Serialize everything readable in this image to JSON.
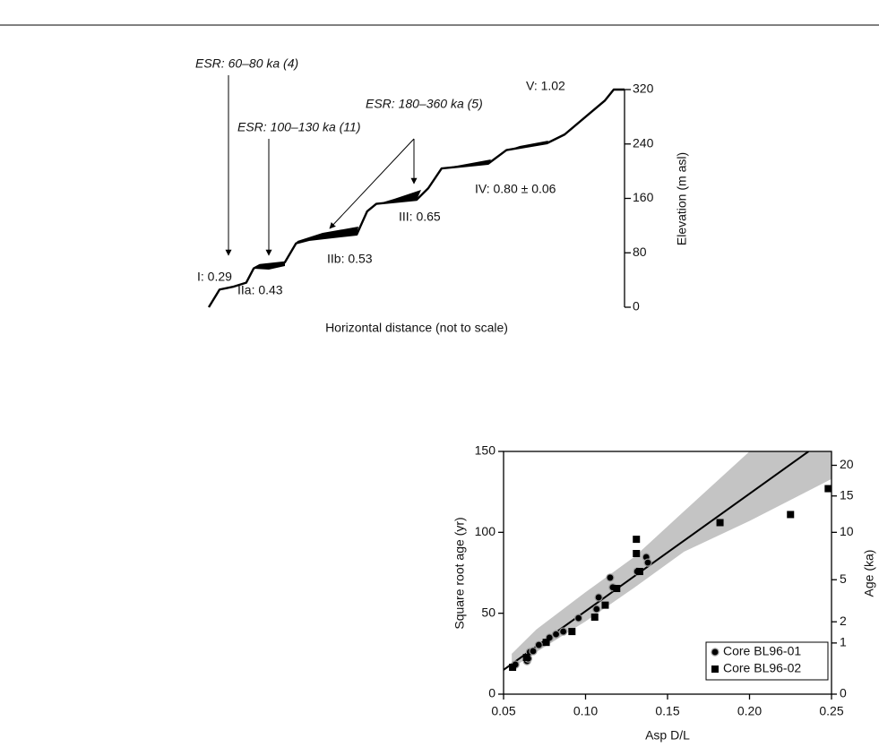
{
  "chart_data": [
    {
      "type": "line",
      "xlabel": "Horizontal distance (not to scale)",
      "ylabel": "Elevation (m asl)",
      "xlim": [
        0,
        100
      ],
      "ylim": [
        0,
        320
      ],
      "yticks": [
        0,
        80,
        160,
        240,
        320
      ],
      "color": "#000000",
      "x": [
        0,
        2.6,
        5.8,
        9,
        10.8,
        12.3,
        18.3,
        21,
        24.1,
        35.6,
        38.1,
        40.3,
        50,
        52.8,
        56,
        67.2,
        71.6,
        81.3,
        85.6,
        92,
        95.3,
        97.4,
        100
      ],
      "values": [
        0,
        26,
        30,
        36,
        57,
        62,
        66,
        94,
        99,
        107,
        141,
        152,
        158,
        175,
        204,
        211,
        231,
        241,
        254,
        287,
        304,
        320,
        320
      ],
      "annotations": [
        "ESR: 60–80 ka (4)",
        "ESR: 100–130 ka (11)",
        "ESR: 180–360 ka (5)",
        "V: 1.02",
        "IV: 0.80 ± 0.06",
        "III: 0.65",
        "IIb: 0.53",
        "IIa: 0.43",
        "I: 0.29"
      ]
    },
    {
      "type": "scatter",
      "xlabel": "Asp D/L",
      "ylabel": "Square root age (yr)",
      "y2label": "Age (ka)",
      "xlim": [
        0.05,
        0.25
      ],
      "xticks": [
        0.05,
        {
          "value": 0.1,
          "label": "0.10"
        },
        0.15,
        {
          "value": 0.2,
          "label": "0.20"
        },
        0.25
      ],
      "ylim": [
        0,
        150
      ],
      "yticks": [
        0,
        50,
        100,
        150
      ],
      "y2lim": [
        0,
        22.5
      ],
      "y2scale": "sqrt",
      "y2ticks": [
        0,
        1,
        2,
        5,
        10,
        15,
        20
      ],
      "legend": "lower right",
      "series": [
        {
          "name": "Core BL96-01",
          "marker": "circle",
          "color": "#000000",
          "x": [
            0.0572,
            0.0643,
            0.065,
            0.066,
            0.068,
            0.0715,
            0.078,
            0.082,
            0.0864,
            0.0957,
            0.1067,
            0.108,
            0.115,
            0.1166,
            0.1315,
            0.137,
            0.138
          ],
          "values": [
            18.3,
            20.5,
            22,
            26,
            26.6,
            30.4,
            34.9,
            37,
            38.7,
            47,
            52.6,
            59.8,
            72,
            66,
            75.8,
            84.7,
            81.3
          ]
        },
        {
          "name": "Core BL96-02",
          "marker": "square",
          "color": "#000000",
          "x": [
            0.0555,
            0.064,
            0.076,
            0.0917,
            0.1056,
            0.112,
            0.119,
            0.131,
            0.131,
            0.133,
            0.182,
            0.225,
            0.248
          ],
          "values": [
            16.6,
            22.7,
            32,
            38.7,
            47.6,
            55,
            65.3,
            95.7,
            86.9,
            75.8,
            106,
            111,
            127
          ]
        }
      ],
      "fit": {
        "color": "#000000",
        "x": [
          0.05,
          0.236
        ],
        "values": [
          15,
          150
        ]
      },
      "band": {
        "color": "#c4c4c4",
        "x": [
          0.055,
          0.07,
          0.1,
          0.13,
          0.16,
          0.2,
          0.25
        ],
        "upper": [
          25,
          40,
          63,
          85,
          113,
          150,
          150
        ],
        "lower": [
          16,
          26,
          45,
          66,
          88,
          107,
          133
        ]
      }
    }
  ]
}
